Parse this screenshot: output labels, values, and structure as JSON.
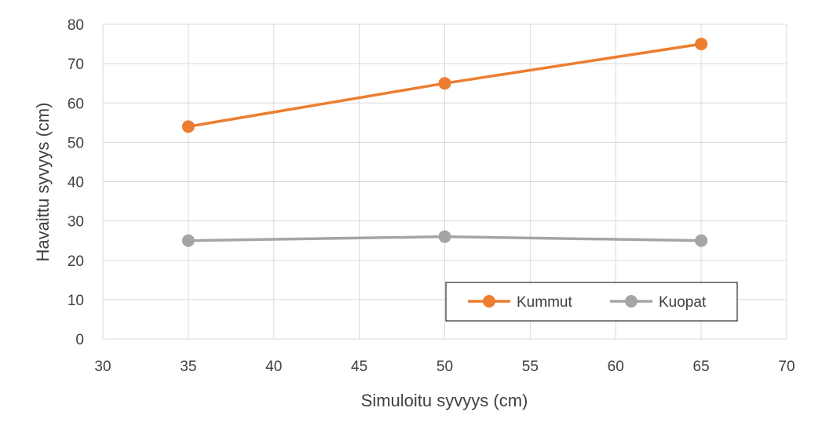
{
  "chart_data": {
    "type": "line",
    "xlabel": "Simuloitu syvyys (cm)",
    "ylabel": "Havaittu syvyys (cm)",
    "xlim": [
      30,
      70
    ],
    "ylim": [
      0,
      80
    ],
    "xticks": [
      30,
      35,
      40,
      45,
      50,
      55,
      60,
      65,
      70
    ],
    "yticks": [
      0,
      10,
      20,
      30,
      40,
      50,
      60,
      70,
      80
    ],
    "grid": true,
    "legend_position": "bottom-right",
    "series": [
      {
        "name": "Kummut",
        "color": "#ED7D31",
        "x": [
          35,
          50,
          65
        ],
        "y": [
          54,
          65,
          75
        ]
      },
      {
        "name": "Kuopat",
        "color": "#A5A5A5",
        "x": [
          35,
          50,
          65
        ],
        "y": [
          25,
          26,
          25
        ]
      }
    ]
  }
}
